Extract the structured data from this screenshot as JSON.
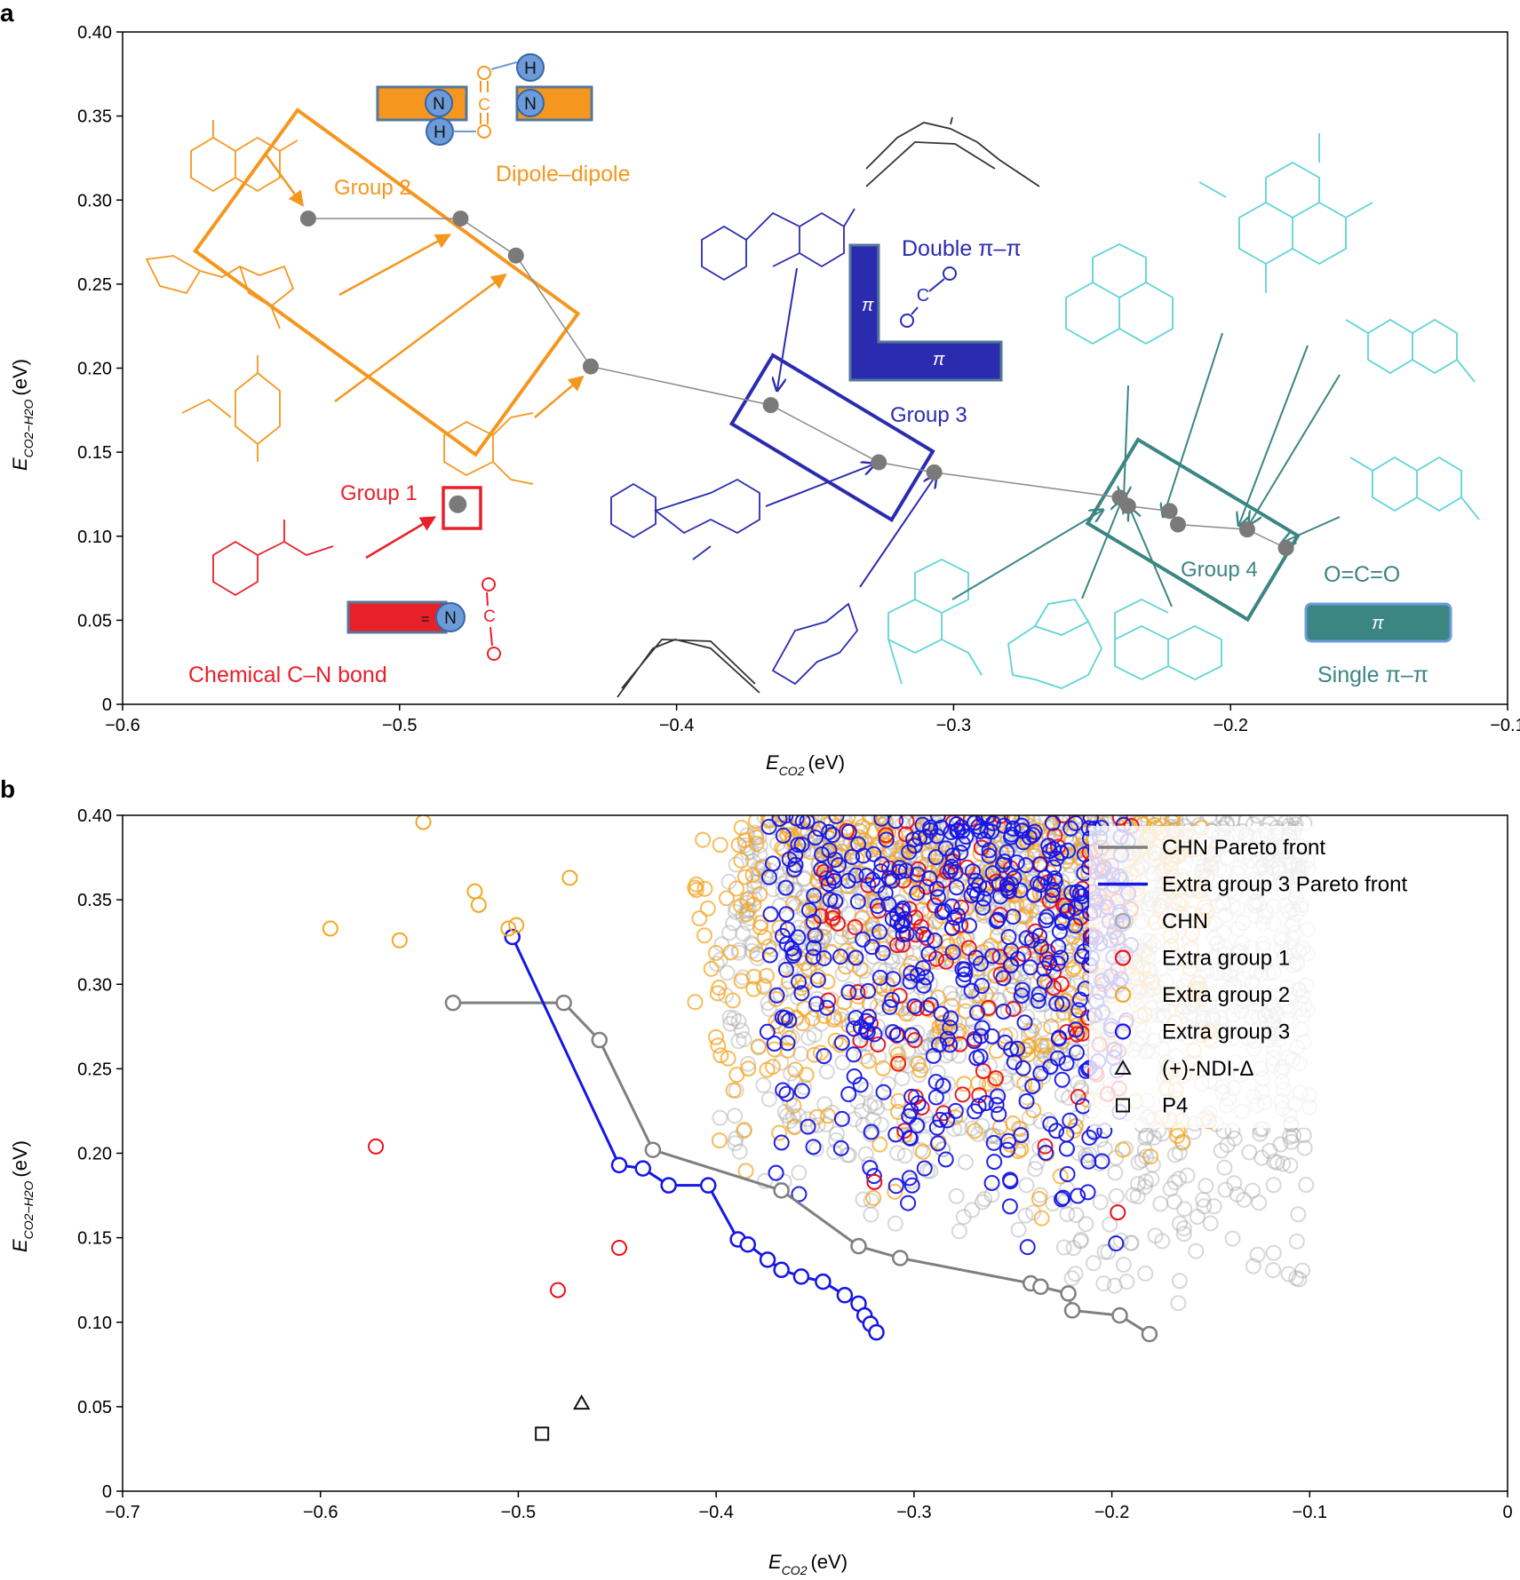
{
  "panel_labels": {
    "a": "a",
    "b": "b"
  },
  "chart_data": [
    {
      "type": "scatter",
      "panel": "a",
      "xlabel": "E",
      "xlabel_sub": "CO2",
      "ylabel": "E",
      "ylabel_sub": "CO2−H2O",
      "unit": "(eV)",
      "xlim": [
        -0.6,
        -0.1
      ],
      "ylim": [
        0,
        0.4
      ],
      "xticks": [
        -0.6,
        -0.5,
        -0.4,
        -0.3,
        -0.2,
        -0.1
      ],
      "xtick_labels": [
        "−0.6",
        "−0.5",
        "−0.4",
        "−0.3",
        "−0.2",
        "−0.1"
      ],
      "yticks": [
        0,
        0.05,
        0.1,
        0.15,
        0.2,
        0.25,
        0.3,
        0.35,
        0.4
      ],
      "ytick_labels": [
        "0",
        "0.05",
        "0.10",
        "0.15",
        "0.20",
        "0.25",
        "0.30",
        "0.35",
        "0.40"
      ],
      "pareto_points": [
        {
          "x": -0.533,
          "y": 0.289
        },
        {
          "x": -0.478,
          "y": 0.289
        },
        {
          "x": -0.458,
          "y": 0.267
        },
        {
          "x": -0.431,
          "y": 0.201
        },
        {
          "x": -0.366,
          "y": 0.178
        },
        {
          "x": -0.327,
          "y": 0.144
        },
        {
          "x": -0.307,
          "y": 0.138
        },
        {
          "x": -0.24,
          "y": 0.123
        },
        {
          "x": -0.237,
          "y": 0.118
        },
        {
          "x": -0.222,
          "y": 0.115
        },
        {
          "x": -0.219,
          "y": 0.107
        },
        {
          "x": -0.194,
          "y": 0.104
        },
        {
          "x": -0.18,
          "y": 0.093
        }
      ],
      "group1_point": {
        "x": -0.479,
        "y": 0.119
      },
      "group_labels": {
        "g1": "Group 1",
        "g2": "Group 2",
        "g3": "Group 3",
        "g4": "Group 4"
      },
      "interaction_labels": {
        "chem": "Chemical C–N bond",
        "dipole": "Dipole–dipole",
        "double": "Double π–π",
        "single": "Single π–π",
        "oco": "O=C=O",
        "pi": "π"
      },
      "colors": {
        "g1": "#e8202a",
        "g2": "#f5971f",
        "g3": "#2b2bb0",
        "g4": "#3b8583",
        "mol4": "#5fd3d6",
        "point": "#7a7a7a"
      }
    },
    {
      "type": "scatter",
      "panel": "b",
      "xlabel": "E",
      "xlabel_sub": "CO2",
      "ylabel": "E",
      "ylabel_sub": "CO2−H2O",
      "unit": "(eV)",
      "xlim": [
        -0.7,
        0
      ],
      "ylim": [
        0,
        0.4
      ],
      "xticks": [
        -0.7,
        -0.6,
        -0.5,
        -0.4,
        -0.3,
        -0.2,
        -0.1,
        0
      ],
      "xtick_labels": [
        "−0.7",
        "−0.6",
        "−0.5",
        "−0.4",
        "−0.3",
        "−0.2",
        "−0.1",
        "0"
      ],
      "yticks": [
        0,
        0.05,
        0.1,
        0.15,
        0.2,
        0.25,
        0.3,
        0.35,
        0.4
      ],
      "ytick_labels": [
        "0",
        "0.05",
        "0.10",
        "0.15",
        "0.20",
        "0.25",
        "0.30",
        "0.35",
        "0.40"
      ],
      "legend_position": "top-right",
      "legend": [
        {
          "label": "CHN Pareto front",
          "kind": "line",
          "color": "#7f7f7f"
        },
        {
          "label": "Extra group 3 Pareto front",
          "kind": "line",
          "color": "#1515e6"
        },
        {
          "label": "CHN",
          "kind": "circle",
          "color": "#a8a8a8"
        },
        {
          "label": "Extra group 1",
          "kind": "circle",
          "color": "#e8101a"
        },
        {
          "label": "Extra group 2",
          "kind": "circle",
          "color": "#f5a623"
        },
        {
          "label": "Extra group 3",
          "kind": "circle",
          "color": "#1515e6"
        },
        {
          "label": "(+)-NDI-Δ",
          "kind": "triangle",
          "color": "#111111"
        },
        {
          "label": "P4",
          "kind": "square",
          "color": "#111111"
        }
      ],
      "series": [
        {
          "name": "CHN Pareto front",
          "color": "#7f7f7f",
          "x": [
            -0.533,
            -0.477,
            -0.459,
            -0.432,
            -0.367,
            -0.328,
            -0.307,
            -0.241,
            -0.236,
            -0.222,
            -0.22,
            -0.196,
            -0.181
          ],
          "y": [
            0.289,
            0.289,
            0.267,
            0.202,
            0.178,
            0.145,
            0.138,
            0.123,
            0.121,
            0.117,
            0.107,
            0.104,
            0.093
          ]
        },
        {
          "name": "Extra group 3 Pareto front",
          "color": "#1515e6",
          "x": [
            -0.503,
            -0.449,
            -0.437,
            -0.424,
            -0.404,
            -0.389,
            -0.384,
            -0.374,
            -0.367,
            -0.357,
            -0.346,
            -0.335,
            -0.328,
            -0.325,
            -0.322,
            -0.319
          ],
          "y": [
            0.328,
            0.193,
            0.191,
            0.181,
            0.181,
            0.149,
            0.146,
            0.137,
            0.131,
            0.127,
            0.124,
            0.116,
            0.111,
            0.104,
            0.099,
            0.094
          ]
        },
        {
          "name": "Extra group 1 (low)",
          "color": "#e8101a",
          "x": [
            -0.572,
            -0.48,
            -0.449,
            -0.32,
            -0.197
          ],
          "y": [
            0.204,
            0.119,
            0.144,
            0.183,
            0.165
          ]
        },
        {
          "name": "Extra group 2 (low)",
          "color": "#f5a623",
          "x": [
            -0.595,
            -0.56,
            -0.548,
            -0.522,
            -0.52,
            -0.505,
            -0.501,
            -0.474
          ],
          "y": [
            0.333,
            0.326,
            0.396,
            0.355,
            0.347,
            0.333,
            0.335,
            0.363
          ]
        },
        {
          "name": "(+)-NDI-Δ",
          "color": "#111111",
          "x": [
            -0.468
          ],
          "y": [
            0.052
          ]
        },
        {
          "name": "P4",
          "color": "#111111",
          "x": [
            -0.488
          ],
          "y": [
            0.034
          ]
        }
      ],
      "clouds": [
        {
          "name": "CHN",
          "color": "#a8a8a8",
          "count": 1500,
          "x_range": [
            -0.5,
            -0.1
          ],
          "y_range": [
            0.1,
            0.4
          ]
        },
        {
          "name": "Extra group 2",
          "color": "#f5a623",
          "count": 520,
          "x_range": [
            -0.5,
            -0.15
          ],
          "y_range": [
            0.15,
            0.4
          ]
        },
        {
          "name": "Extra group 1",
          "color": "#e8101a",
          "count": 120,
          "x_range": [
            -0.4,
            -0.19
          ],
          "y_range": [
            0.18,
            0.4
          ]
        },
        {
          "name": "Extra group 3",
          "color": "#1515e6",
          "count": 460,
          "x_range": [
            -0.44,
            -0.19
          ],
          "y_range": [
            0.12,
            0.4
          ]
        }
      ]
    }
  ]
}
